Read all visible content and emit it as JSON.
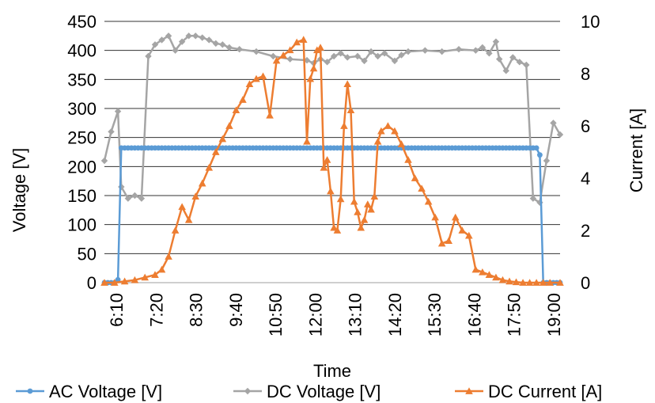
{
  "chart_data": {
    "type": "line",
    "xlabel": "Time",
    "ylabel": "Voltage [V]",
    "y2label": "Current [A]",
    "ylim": [
      0,
      450
    ],
    "y2lim": [
      0,
      10
    ],
    "yticks": [
      "0",
      "50",
      "100",
      "150",
      "200",
      "250",
      "300",
      "350",
      "400",
      "450"
    ],
    "y2ticks": [
      "0",
      "2",
      "4",
      "6",
      "8",
      "10"
    ],
    "xticks": [
      "6:10",
      "7:20",
      "8:30",
      "9:40",
      "10:50",
      "12:00",
      "13:10",
      "14:20",
      "15:30",
      "16:40",
      "17:50",
      "19:00"
    ],
    "x_index_range": [
      0,
      135
    ],
    "grid": true,
    "legend_position": "bottom",
    "series": [
      {
        "name": "AC Voltage [V]",
        "axis": "left",
        "color": "#5b9bd5",
        "marker": "circle",
        "x": [
          0,
          3,
          4,
          5,
          128,
          129,
          130,
          132,
          135
        ],
        "values": [
          0,
          0,
          5,
          232,
          232,
          220,
          0,
          0,
          0
        ]
      },
      {
        "name": "DC Voltage [V]",
        "axis": "left",
        "color": "#a5a5a5",
        "marker": "diamond",
        "x": [
          0,
          2,
          4,
          5,
          7,
          9,
          11,
          13,
          15,
          17,
          19,
          21,
          23,
          25,
          27,
          29,
          31,
          33,
          35,
          37,
          40,
          45,
          50,
          55,
          60,
          62,
          64,
          66,
          68,
          70,
          72,
          75,
          77,
          79,
          81,
          83,
          86,
          88,
          90,
          95,
          100,
          105,
          110,
          112,
          114,
          116,
          117,
          119,
          121,
          123,
          125,
          127,
          129,
          131,
          133,
          135
        ],
        "values": [
          210,
          260,
          295,
          165,
          145,
          150,
          145,
          390,
          410,
          418,
          425,
          400,
          415,
          425,
          425,
          422,
          418,
          412,
          410,
          405,
          402,
          398,
          390,
          385,
          383,
          378,
          385,
          380,
          390,
          395,
          388,
          390,
          382,
          398,
          390,
          395,
          382,
          392,
          398,
          400,
          398,
          402,
          400,
          405,
          395,
          415,
          385,
          365,
          388,
          380,
          375,
          145,
          138,
          210,
          275,
          255
        ]
      },
      {
        "name": "DC Current [A]",
        "axis": "right",
        "color": "#ed7d31",
        "marker": "triangle",
        "x": [
          0,
          3,
          6,
          9,
          12,
          15,
          17,
          19,
          21,
          23,
          25,
          27,
          29,
          31,
          33,
          35,
          37,
          39,
          41,
          43,
          45,
          47,
          49,
          51,
          53,
          55,
          57,
          59,
          60,
          61,
          62,
          63,
          64,
          65,
          66,
          67,
          68,
          69,
          70,
          71,
          72,
          73,
          74,
          75,
          76,
          77,
          78,
          79,
          80,
          81,
          82,
          84,
          86,
          88,
          90,
          92,
          94,
          96,
          98,
          100,
          102,
          104,
          106,
          108,
          110,
          112,
          114,
          116,
          118,
          120,
          122,
          124,
          126,
          128,
          130,
          132,
          135
        ],
        "values": [
          0.0,
          0.0,
          0.05,
          0.1,
          0.2,
          0.3,
          0.5,
          1.0,
          2.0,
          2.9,
          2.4,
          3.3,
          3.8,
          4.4,
          5.0,
          5.5,
          6.0,
          6.6,
          7.0,
          7.6,
          7.8,
          7.9,
          6.4,
          8.5,
          8.7,
          8.9,
          9.2,
          9.3,
          5.4,
          7.8,
          8.2,
          8.9,
          9.0,
          4.4,
          4.7,
          3.5,
          2.1,
          2.0,
          3.2,
          6.0,
          7.6,
          6.6,
          3.1,
          2.7,
          2.1,
          2.4,
          3.0,
          2.8,
          3.3,
          5.4,
          5.8,
          6.0,
          5.8,
          5.3,
          4.7,
          4.0,
          3.6,
          3.1,
          2.5,
          1.5,
          1.6,
          2.5,
          2.0,
          1.8,
          0.5,
          0.4,
          0.3,
          0.2,
          0.1,
          0.05,
          0.02,
          0.0,
          0.0,
          0.0,
          0.0,
          0.0,
          0.0
        ]
      }
    ]
  }
}
